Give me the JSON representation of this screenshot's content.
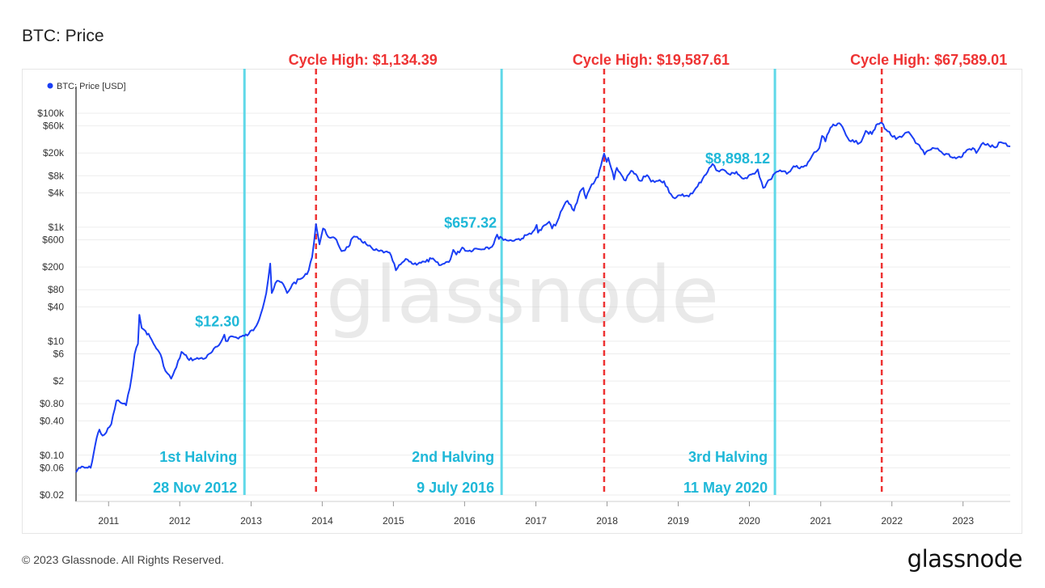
{
  "page": {
    "title": "BTC: Price",
    "copyright": "© 2023 Glassnode. All Rights Reserved.",
    "logo": "glassnode",
    "watermark": "glassnode"
  },
  "colors": {
    "price_line": "#1a3ef5",
    "halving_line": "#5fd8e8",
    "cycle_high_line": "#ee3333",
    "halving_text": "#1fb8d8",
    "cycle_high_text": "#ee3333"
  },
  "chart_data": {
    "type": "line",
    "title": "BTC: Price",
    "y_scale": "log",
    "ylim": [
      0.02,
      180000
    ],
    "xlim": [
      "2010-07-18",
      "2023-08-31"
    ],
    "grid": true,
    "legend": {
      "position": "top-left",
      "entries": [
        "BTC: Price [USD]"
      ]
    },
    "y_ticks": [
      {
        "value": 100000,
        "label": "$100k"
      },
      {
        "value": 60000,
        "label": "$60k"
      },
      {
        "value": 20000,
        "label": "$20k"
      },
      {
        "value": 8000,
        "label": "$8k"
      },
      {
        "value": 4000,
        "label": "$4k"
      },
      {
        "value": 1000,
        "label": "$1k"
      },
      {
        "value": 600,
        "label": "$600"
      },
      {
        "value": 200,
        "label": "$200"
      },
      {
        "value": 80,
        "label": "$80"
      },
      {
        "value": 40,
        "label": "$40"
      },
      {
        "value": 10,
        "label": "$10"
      },
      {
        "value": 6,
        "label": "$6"
      },
      {
        "value": 2,
        "label": "$2"
      },
      {
        "value": 0.8,
        "label": "$0.80"
      },
      {
        "value": 0.4,
        "label": "$0.40"
      },
      {
        "value": 0.1,
        "label": "$0.10"
      },
      {
        "value": 0.06,
        "label": "$0.06"
      },
      {
        "value": 0.02,
        "label": "$0.02"
      }
    ],
    "x_ticks": [
      "2011",
      "2012",
      "2013",
      "2014",
      "2015",
      "2016",
      "2017",
      "2018",
      "2019",
      "2020",
      "2021",
      "2022",
      "2023"
    ],
    "series": [
      {
        "name": "BTC: Price [USD]",
        "points": [
          [
            "2010-07-18",
            0.05
          ],
          [
            "2010-08-01",
            0.06
          ],
          [
            "2010-09-01",
            0.06
          ],
          [
            "2010-10-01",
            0.06
          ],
          [
            "2010-11-01",
            0.2
          ],
          [
            "2010-11-15",
            0.28
          ],
          [
            "2010-12-01",
            0.22
          ],
          [
            "2010-12-20",
            0.25
          ],
          [
            "2011-01-15",
            0.35
          ],
          [
            "2011-02-10",
            0.9
          ],
          [
            "2011-03-01",
            0.85
          ],
          [
            "2011-04-01",
            0.75
          ],
          [
            "2011-04-20",
            1.5
          ],
          [
            "2011-05-15",
            6
          ],
          [
            "2011-06-01",
            9
          ],
          [
            "2011-06-08",
            29
          ],
          [
            "2011-06-20",
            17
          ],
          [
            "2011-07-10",
            15
          ],
          [
            "2011-08-01",
            12
          ],
          [
            "2011-08-20",
            9
          ],
          [
            "2011-09-10",
            7
          ],
          [
            "2011-10-01",
            5
          ],
          [
            "2011-10-20",
            3
          ],
          [
            "2011-11-18",
            2.2
          ],
          [
            "2011-12-15",
            3.5
          ],
          [
            "2012-01-10",
            6.5
          ],
          [
            "2012-02-10",
            5
          ],
          [
            "2012-03-15",
            4.8
          ],
          [
            "2012-04-15",
            5
          ],
          [
            "2012-05-15",
            5.1
          ],
          [
            "2012-06-15",
            6.5
          ],
          [
            "2012-07-20",
            8.5
          ],
          [
            "2012-08-17",
            13
          ],
          [
            "2012-08-25",
            10
          ],
          [
            "2012-09-20",
            12.2
          ],
          [
            "2012-10-20",
            11.5
          ],
          [
            "2012-11-28",
            12.3
          ],
          [
            "2012-12-20",
            13.4
          ],
          [
            "2013-01-20",
            17
          ],
          [
            "2013-02-20",
            30
          ],
          [
            "2013-03-20",
            70
          ],
          [
            "2013-04-09",
            230
          ],
          [
            "2013-04-17",
            70
          ],
          [
            "2013-05-15",
            115
          ],
          [
            "2013-06-15",
            100
          ],
          [
            "2013-07-05",
            70
          ],
          [
            "2013-08-01",
            100
          ],
          [
            "2013-09-15",
            125
          ],
          [
            "2013-10-15",
            150
          ],
          [
            "2013-11-10",
            300
          ],
          [
            "2013-11-30",
            1134.39
          ],
          [
            "2013-12-18",
            500
          ],
          [
            "2014-01-05",
            950
          ],
          [
            "2014-02-10",
            650
          ],
          [
            "2014-03-15",
            600
          ],
          [
            "2014-04-10",
            380
          ],
          [
            "2014-05-15",
            450
          ],
          [
            "2014-06-05",
            650
          ],
          [
            "2014-07-15",
            620
          ],
          [
            "2014-08-15",
            500
          ],
          [
            "2014-09-20",
            400
          ],
          [
            "2014-10-20",
            380
          ],
          [
            "2014-11-20",
            370
          ],
          [
            "2014-12-20",
            320
          ],
          [
            "2015-01-14",
            175
          ],
          [
            "2015-02-15",
            240
          ],
          [
            "2015-03-15",
            270
          ],
          [
            "2015-04-15",
            225
          ],
          [
            "2015-05-15",
            240
          ],
          [
            "2015-06-15",
            245
          ],
          [
            "2015-07-15",
            280
          ],
          [
            "2015-08-24",
            215
          ],
          [
            "2015-09-20",
            230
          ],
          [
            "2015-10-20",
            270
          ],
          [
            "2015-11-04",
            400
          ],
          [
            "2015-11-20",
            330
          ],
          [
            "2015-12-20",
            440
          ],
          [
            "2016-01-20",
            380
          ],
          [
            "2016-02-20",
            420
          ],
          [
            "2016-03-20",
            410
          ],
          [
            "2016-04-20",
            445
          ],
          [
            "2016-05-20",
            450
          ],
          [
            "2016-06-16",
            740
          ],
          [
            "2016-06-25",
            620
          ],
          [
            "2016-07-09",
            657.32
          ],
          [
            "2016-08-15",
            580
          ],
          [
            "2016-09-20",
            610
          ],
          [
            "2016-10-20",
            630
          ],
          [
            "2016-11-20",
            740
          ],
          [
            "2016-12-25",
            900
          ],
          [
            "2017-01-05",
            1100
          ],
          [
            "2017-01-12",
            800
          ],
          [
            "2017-02-20",
            1100
          ],
          [
            "2017-03-10",
            1250
          ],
          [
            "2017-03-25",
            950
          ],
          [
            "2017-04-20",
            1250
          ],
          [
            "2017-05-25",
            2400
          ],
          [
            "2017-06-12",
            2900
          ],
          [
            "2017-07-15",
            1950
          ],
          [
            "2017-08-15",
            4200
          ],
          [
            "2017-09-01",
            4900
          ],
          [
            "2017-09-15",
            3200
          ],
          [
            "2017-10-15",
            5700
          ],
          [
            "2017-11-15",
            7500
          ],
          [
            "2017-12-17",
            19587.61
          ],
          [
            "2017-12-30",
            14000
          ],
          [
            "2018-01-07",
            16500
          ],
          [
            "2018-02-06",
            6900
          ],
          [
            "2018-02-20",
            11000
          ],
          [
            "2018-03-15",
            8300
          ],
          [
            "2018-04-06",
            6600
          ],
          [
            "2018-05-05",
            9800
          ],
          [
            "2018-06-20",
            6500
          ],
          [
            "2018-07-25",
            8200
          ],
          [
            "2018-08-15",
            6300
          ],
          [
            "2018-09-20",
            6500
          ],
          [
            "2018-10-20",
            6400
          ],
          [
            "2018-11-25",
            3800
          ],
          [
            "2018-12-15",
            3200
          ],
          [
            "2019-01-15",
            3600
          ],
          [
            "2019-02-15",
            3600
          ],
          [
            "2019-03-15",
            3900
          ],
          [
            "2019-04-10",
            5200
          ],
          [
            "2019-05-15",
            8000
          ],
          [
            "2019-06-26",
            12900
          ],
          [
            "2019-07-15",
            10000
          ],
          [
            "2019-08-15",
            10300
          ],
          [
            "2019-09-25",
            8300
          ],
          [
            "2019-10-26",
            9400
          ],
          [
            "2019-11-25",
            7200
          ],
          [
            "2019-12-20",
            7200
          ],
          [
            "2020-01-20",
            8700
          ],
          [
            "2020-02-13",
            10300
          ],
          [
            "2020-03-12",
            4900
          ],
          [
            "2020-04-15",
            6800
          ],
          [
            "2020-05-11",
            8898.12
          ],
          [
            "2020-06-15",
            9500
          ],
          [
            "2020-07-20",
            9200
          ],
          [
            "2020-08-15",
            11800
          ],
          [
            "2020-09-15",
            10700
          ],
          [
            "2020-10-20",
            12000
          ],
          [
            "2020-11-20",
            18500
          ],
          [
            "2020-12-25",
            24500
          ],
          [
            "2021-01-08",
            40000
          ],
          [
            "2021-01-25",
            32000
          ],
          [
            "2021-02-20",
            56000
          ],
          [
            "2021-03-13",
            61000
          ],
          [
            "2021-04-14",
            63500
          ],
          [
            "2021-05-19",
            37000
          ],
          [
            "2021-06-22",
            31000
          ],
          [
            "2021-07-20",
            30000
          ],
          [
            "2021-08-20",
            49000
          ],
          [
            "2021-09-20",
            43000
          ],
          [
            "2021-10-20",
            65000
          ],
          [
            "2021-11-10",
            67589.01
          ],
          [
            "2021-12-10",
            48000
          ],
          [
            "2022-01-22",
            35000
          ],
          [
            "2022-02-20",
            38000
          ],
          [
            "2022-03-28",
            47000
          ],
          [
            "2022-05-12",
            29000
          ],
          [
            "2022-06-18",
            19000
          ],
          [
            "2022-07-20",
            23000
          ],
          [
            "2022-08-15",
            24000
          ],
          [
            "2022-09-20",
            19500
          ],
          [
            "2022-10-20",
            19200
          ],
          [
            "2022-11-10",
            16500
          ],
          [
            "2022-12-20",
            16800
          ],
          [
            "2023-01-20",
            22500
          ],
          [
            "2023-02-20",
            24500
          ],
          [
            "2023-03-10",
            20000
          ],
          [
            "2023-04-14",
            30300
          ],
          [
            "2023-05-15",
            27000
          ],
          [
            "2023-06-15",
            25000
          ],
          [
            "2023-07-13",
            31000
          ],
          [
            "2023-08-17",
            26500
          ],
          [
            "2023-08-31",
            26000
          ]
        ]
      }
    ],
    "halvings": [
      {
        "name": "1st Halving",
        "date_label": "28 Nov 2012",
        "date": "2012-11-28",
        "price_label": "$12.30",
        "price": 12.3
      },
      {
        "name": "2nd Halving",
        "date_label": "9 July 2016",
        "date": "2016-07-09",
        "price_label": "$657.32",
        "price": 657.32
      },
      {
        "name": "3rd Halving",
        "date_label": "11 May 2020",
        "date": "2020-05-11",
        "price_label": "$8,898.12",
        "price": 8898.12
      }
    ],
    "cycle_highs": [
      {
        "label": "Cycle High: $1,134.39",
        "date": "2013-11-30",
        "price": 1134.39
      },
      {
        "label": "Cycle High: $19,587.61",
        "date": "2017-12-17",
        "price": 19587.61
      },
      {
        "label": "Cycle High: $67,589.01",
        "date": "2021-11-10",
        "price": 67589.01
      }
    ]
  }
}
